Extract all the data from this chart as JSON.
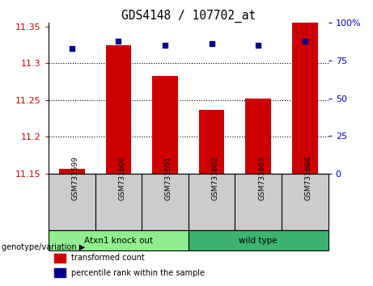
{
  "title": "GDS4148 / 107702_at",
  "samples": [
    "GSM731599",
    "GSM731600",
    "GSM731601",
    "GSM731602",
    "GSM731603",
    "GSM731604"
  ],
  "red_values": [
    11.157,
    11.325,
    11.283,
    11.237,
    11.252,
    11.355
  ],
  "blue_values": [
    83,
    88,
    85,
    86,
    85,
    88
  ],
  "ymin": 11.15,
  "ymax": 11.355,
  "yticks": [
    11.15,
    11.2,
    11.25,
    11.3,
    11.35
  ],
  "y2min": 0,
  "y2max": 100,
  "y2ticks": [
    0,
    25,
    50,
    75,
    100
  ],
  "y2ticklabels": [
    "0",
    "25",
    "50",
    "75",
    "100%"
  ],
  "groups": [
    {
      "label": "Atxn1 knock out",
      "color": "#90EE90",
      "start": 0,
      "end": 3
    },
    {
      "label": "wild type",
      "color": "#3CB371",
      "start": 3,
      "end": 6
    }
  ],
  "bar_color": "#CC0000",
  "dot_color": "#00008B",
  "bar_width": 0.55,
  "left_tick_color": "#CC0000",
  "right_tick_color": "#0000CC",
  "legend_red": "transformed count",
  "legend_blue": "percentile rank within the sample",
  "background_color": "#ffffff",
  "xticklabel_bg": "#cccccc",
  "grid_ticks": [
    11.2,
    11.25,
    11.3
  ]
}
